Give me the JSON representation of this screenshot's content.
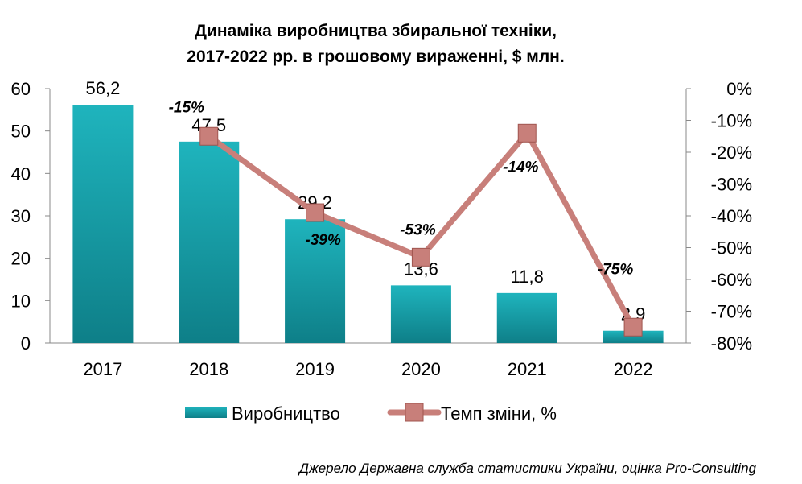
{
  "chart_data": {
    "type": "bar",
    "title_line1": "Динаміка виробництва збиральної техніки,",
    "title_line2": "2017-2022 рр. в грошовому вираженні, $ млн.",
    "categories": [
      "2017",
      "2018",
      "2019",
      "2020",
      "2021",
      "2022"
    ],
    "ylim_left": [
      0,
      60
    ],
    "yticks_left": [
      0,
      10,
      20,
      30,
      40,
      50,
      60
    ],
    "ylim_right": [
      -80,
      0
    ],
    "yticks_right": [
      0,
      -10,
      -20,
      -30,
      -40,
      -50,
      -60,
      -70,
      -80
    ],
    "yticks_right_labels": [
      "0%",
      "-10%",
      "-20%",
      "-30%",
      "-40%",
      "-50%",
      "-60%",
      "-70%",
      "-80%"
    ],
    "grid": false,
    "legend_position": "bottom",
    "series": [
      {
        "name": "Виробництво",
        "type": "bar",
        "axis": "left",
        "color": "#1aa3ad",
        "values": [
          56.2,
          47.5,
          29.2,
          13.6,
          11.8,
          2.9
        ],
        "labels": [
          "56,2",
          "47,5",
          "29,2",
          "13,6",
          "11,8",
          "2,9"
        ]
      },
      {
        "name": "Темп зміни, %",
        "type": "line",
        "axis": "right",
        "color": "#c87f7a",
        "x": [
          "2018",
          "2019",
          "2020",
          "2021",
          "2022"
        ],
        "values": [
          -15,
          -39,
          -53,
          -14,
          -75
        ],
        "labels": [
          "-15%",
          "-39%",
          "-53%",
          "-14%",
          "-75%"
        ]
      }
    ],
    "source": "Джерело Державна служба статистики України, оцінка Pro-Consulting"
  }
}
